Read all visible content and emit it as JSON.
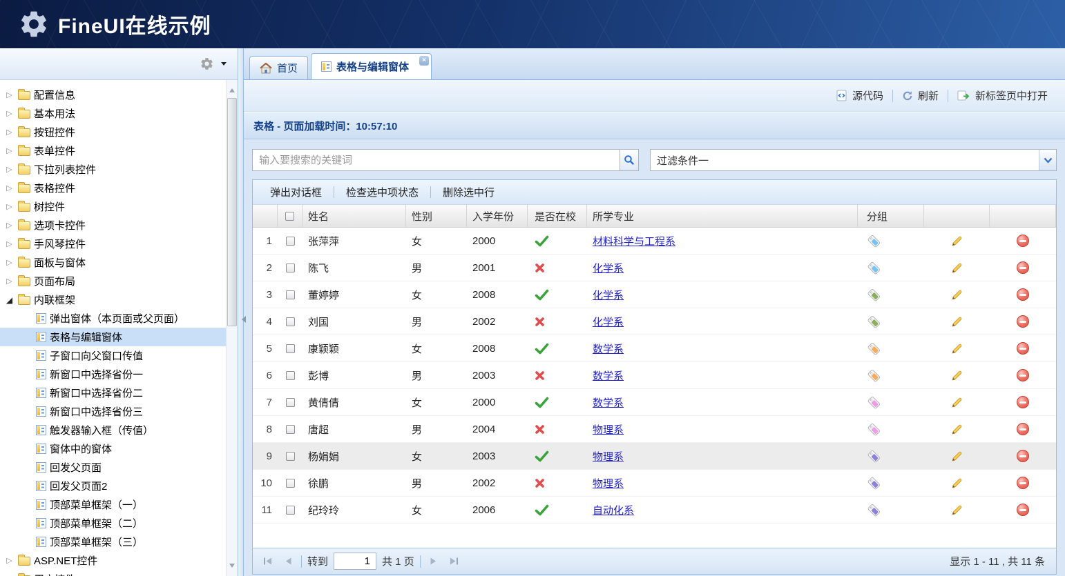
{
  "header": {
    "title": "FineUI在线示例"
  },
  "sidebar": {
    "tree": [
      {
        "type": "folder",
        "label": "配置信息"
      },
      {
        "type": "folder",
        "label": "基本用法"
      },
      {
        "type": "folder",
        "label": "按钮控件"
      },
      {
        "type": "folder",
        "label": "表单控件"
      },
      {
        "type": "folder",
        "label": "下拉列表控件"
      },
      {
        "type": "folder",
        "label": "表格控件"
      },
      {
        "type": "folder",
        "label": "树控件"
      },
      {
        "type": "folder",
        "label": "选项卡控件"
      },
      {
        "type": "folder",
        "label": "手风琴控件"
      },
      {
        "type": "folder",
        "label": "面板与窗体"
      },
      {
        "type": "folder",
        "label": "页面布局"
      },
      {
        "type": "folder",
        "label": "内联框架",
        "expanded": true
      },
      {
        "type": "leaf",
        "label": "弹出窗体（本页面或父页面）"
      },
      {
        "type": "leaf",
        "label": "表格与编辑窗体",
        "selected": true
      },
      {
        "type": "leaf",
        "label": "子窗口向父窗口传值"
      },
      {
        "type": "leaf",
        "label": "新窗口中选择省份一"
      },
      {
        "type": "leaf",
        "label": "新窗口中选择省份二"
      },
      {
        "type": "leaf",
        "label": "新窗口中选择省份三"
      },
      {
        "type": "leaf",
        "label": "触发器输入框（传值）"
      },
      {
        "type": "leaf",
        "label": "窗体中的窗体"
      },
      {
        "type": "leaf",
        "label": "回发父页面"
      },
      {
        "type": "leaf",
        "label": "回发父页面2"
      },
      {
        "type": "leaf",
        "label": "顶部菜单框架（一）"
      },
      {
        "type": "leaf",
        "label": "顶部菜单框架（二）"
      },
      {
        "type": "leaf",
        "label": "顶部菜单框架（三）"
      },
      {
        "type": "folder",
        "label": "ASP.NET控件"
      },
      {
        "type": "folder",
        "label": "用户控件"
      }
    ]
  },
  "tabs": [
    {
      "label": "首页",
      "active": false
    },
    {
      "label": "表格与编辑窗体",
      "active": true,
      "closable": true
    }
  ],
  "toolbar": {
    "buttons": [
      {
        "label": "源代码",
        "icon": "source-code-icon"
      },
      {
        "label": "刷新",
        "icon": "refresh-icon"
      },
      {
        "label": "新标签页中打开",
        "icon": "open-in-new-tab-icon"
      }
    ]
  },
  "panel": {
    "title": "表格 - 页面加载时间：10:57:10"
  },
  "search": {
    "placeholder": "输入要搜索的关键词"
  },
  "filter": {
    "value": "过滤条件一"
  },
  "grid": {
    "toolbar": [
      "弹出对话框",
      "检查选中项状态",
      "删除选中行"
    ],
    "columns": [
      "姓名",
      "性别",
      "入学年份",
      "是否在校",
      "所学专业",
      "分组"
    ],
    "rows": [
      {
        "num": 1,
        "name": "张萍萍",
        "gender": "女",
        "year": "2000",
        "enrolled": true,
        "major": "材料科学与工程系",
        "tag_color": "#76c4f5"
      },
      {
        "num": 2,
        "name": "陈飞",
        "gender": "男",
        "year": "2001",
        "enrolled": false,
        "major": "化学系",
        "tag_color": "#76c4f5"
      },
      {
        "num": 3,
        "name": "董婷婷",
        "gender": "女",
        "year": "2008",
        "enrolled": true,
        "major": "化学系",
        "tag_color": "#8aae5a"
      },
      {
        "num": 4,
        "name": "刘国",
        "gender": "男",
        "year": "2002",
        "enrolled": false,
        "major": "化学系",
        "tag_color": "#8aae5a"
      },
      {
        "num": 5,
        "name": "康颖颖",
        "gender": "女",
        "year": "2008",
        "enrolled": true,
        "major": "数学系",
        "tag_color": "#fcab57"
      },
      {
        "num": 6,
        "name": "彭博",
        "gender": "男",
        "year": "2003",
        "enrolled": false,
        "major": "数学系",
        "tag_color": "#fcab57"
      },
      {
        "num": 7,
        "name": "黄倩倩",
        "gender": "女",
        "year": "2000",
        "enrolled": true,
        "major": "数学系",
        "tag_color": "#ee9ce8"
      },
      {
        "num": 8,
        "name": "唐超",
        "gender": "男",
        "year": "2004",
        "enrolled": false,
        "major": "物理系",
        "tag_color": "#ee9ce8"
      },
      {
        "num": 9,
        "name": "杨娟娟",
        "gender": "女",
        "year": "2003",
        "enrolled": true,
        "major": "物理系",
        "tag_color": "#8b80da",
        "highlight": true
      },
      {
        "num": 10,
        "name": "徐鹏",
        "gender": "男",
        "year": "2002",
        "enrolled": false,
        "major": "物理系",
        "tag_color": "#8b80da"
      },
      {
        "num": 11,
        "name": "纪玲玲",
        "gender": "女",
        "year": "2006",
        "enrolled": true,
        "major": "自动化系",
        "tag_color": "#8b80da"
      }
    ]
  },
  "pagination": {
    "goto_label": "转到",
    "page_value": "1",
    "total_label": "共 1 页",
    "summary": "显示 1 - 11 , 共 11 条"
  },
  "icons": {
    "logo": "gear-icon",
    "sidebar_settings": "gear-icon",
    "tab_home": "home-icon",
    "tab_active": "grid-icon",
    "search": "magnifier-icon",
    "filter": "chevron-down-icon",
    "enrolled_true": "green-check-icon",
    "enrolled_false": "red-cross-icon",
    "group": "tag-icon",
    "edit": "pencil-icon",
    "delete": "red-minus-circle-icon"
  },
  "colors": {
    "accent": "#15428b",
    "link": "#2222cc",
    "check_green": "#3aa33a",
    "cross_red": "#e24c4c",
    "tag_blue": "#76c4f5",
    "tag_green": "#8aae5a",
    "tag_orange": "#fcab57",
    "tag_pink": "#ee9ce8",
    "tag_purple": "#8b80da",
    "header_dark": "#0b1b42",
    "header_light": "#2d5fa6"
  }
}
